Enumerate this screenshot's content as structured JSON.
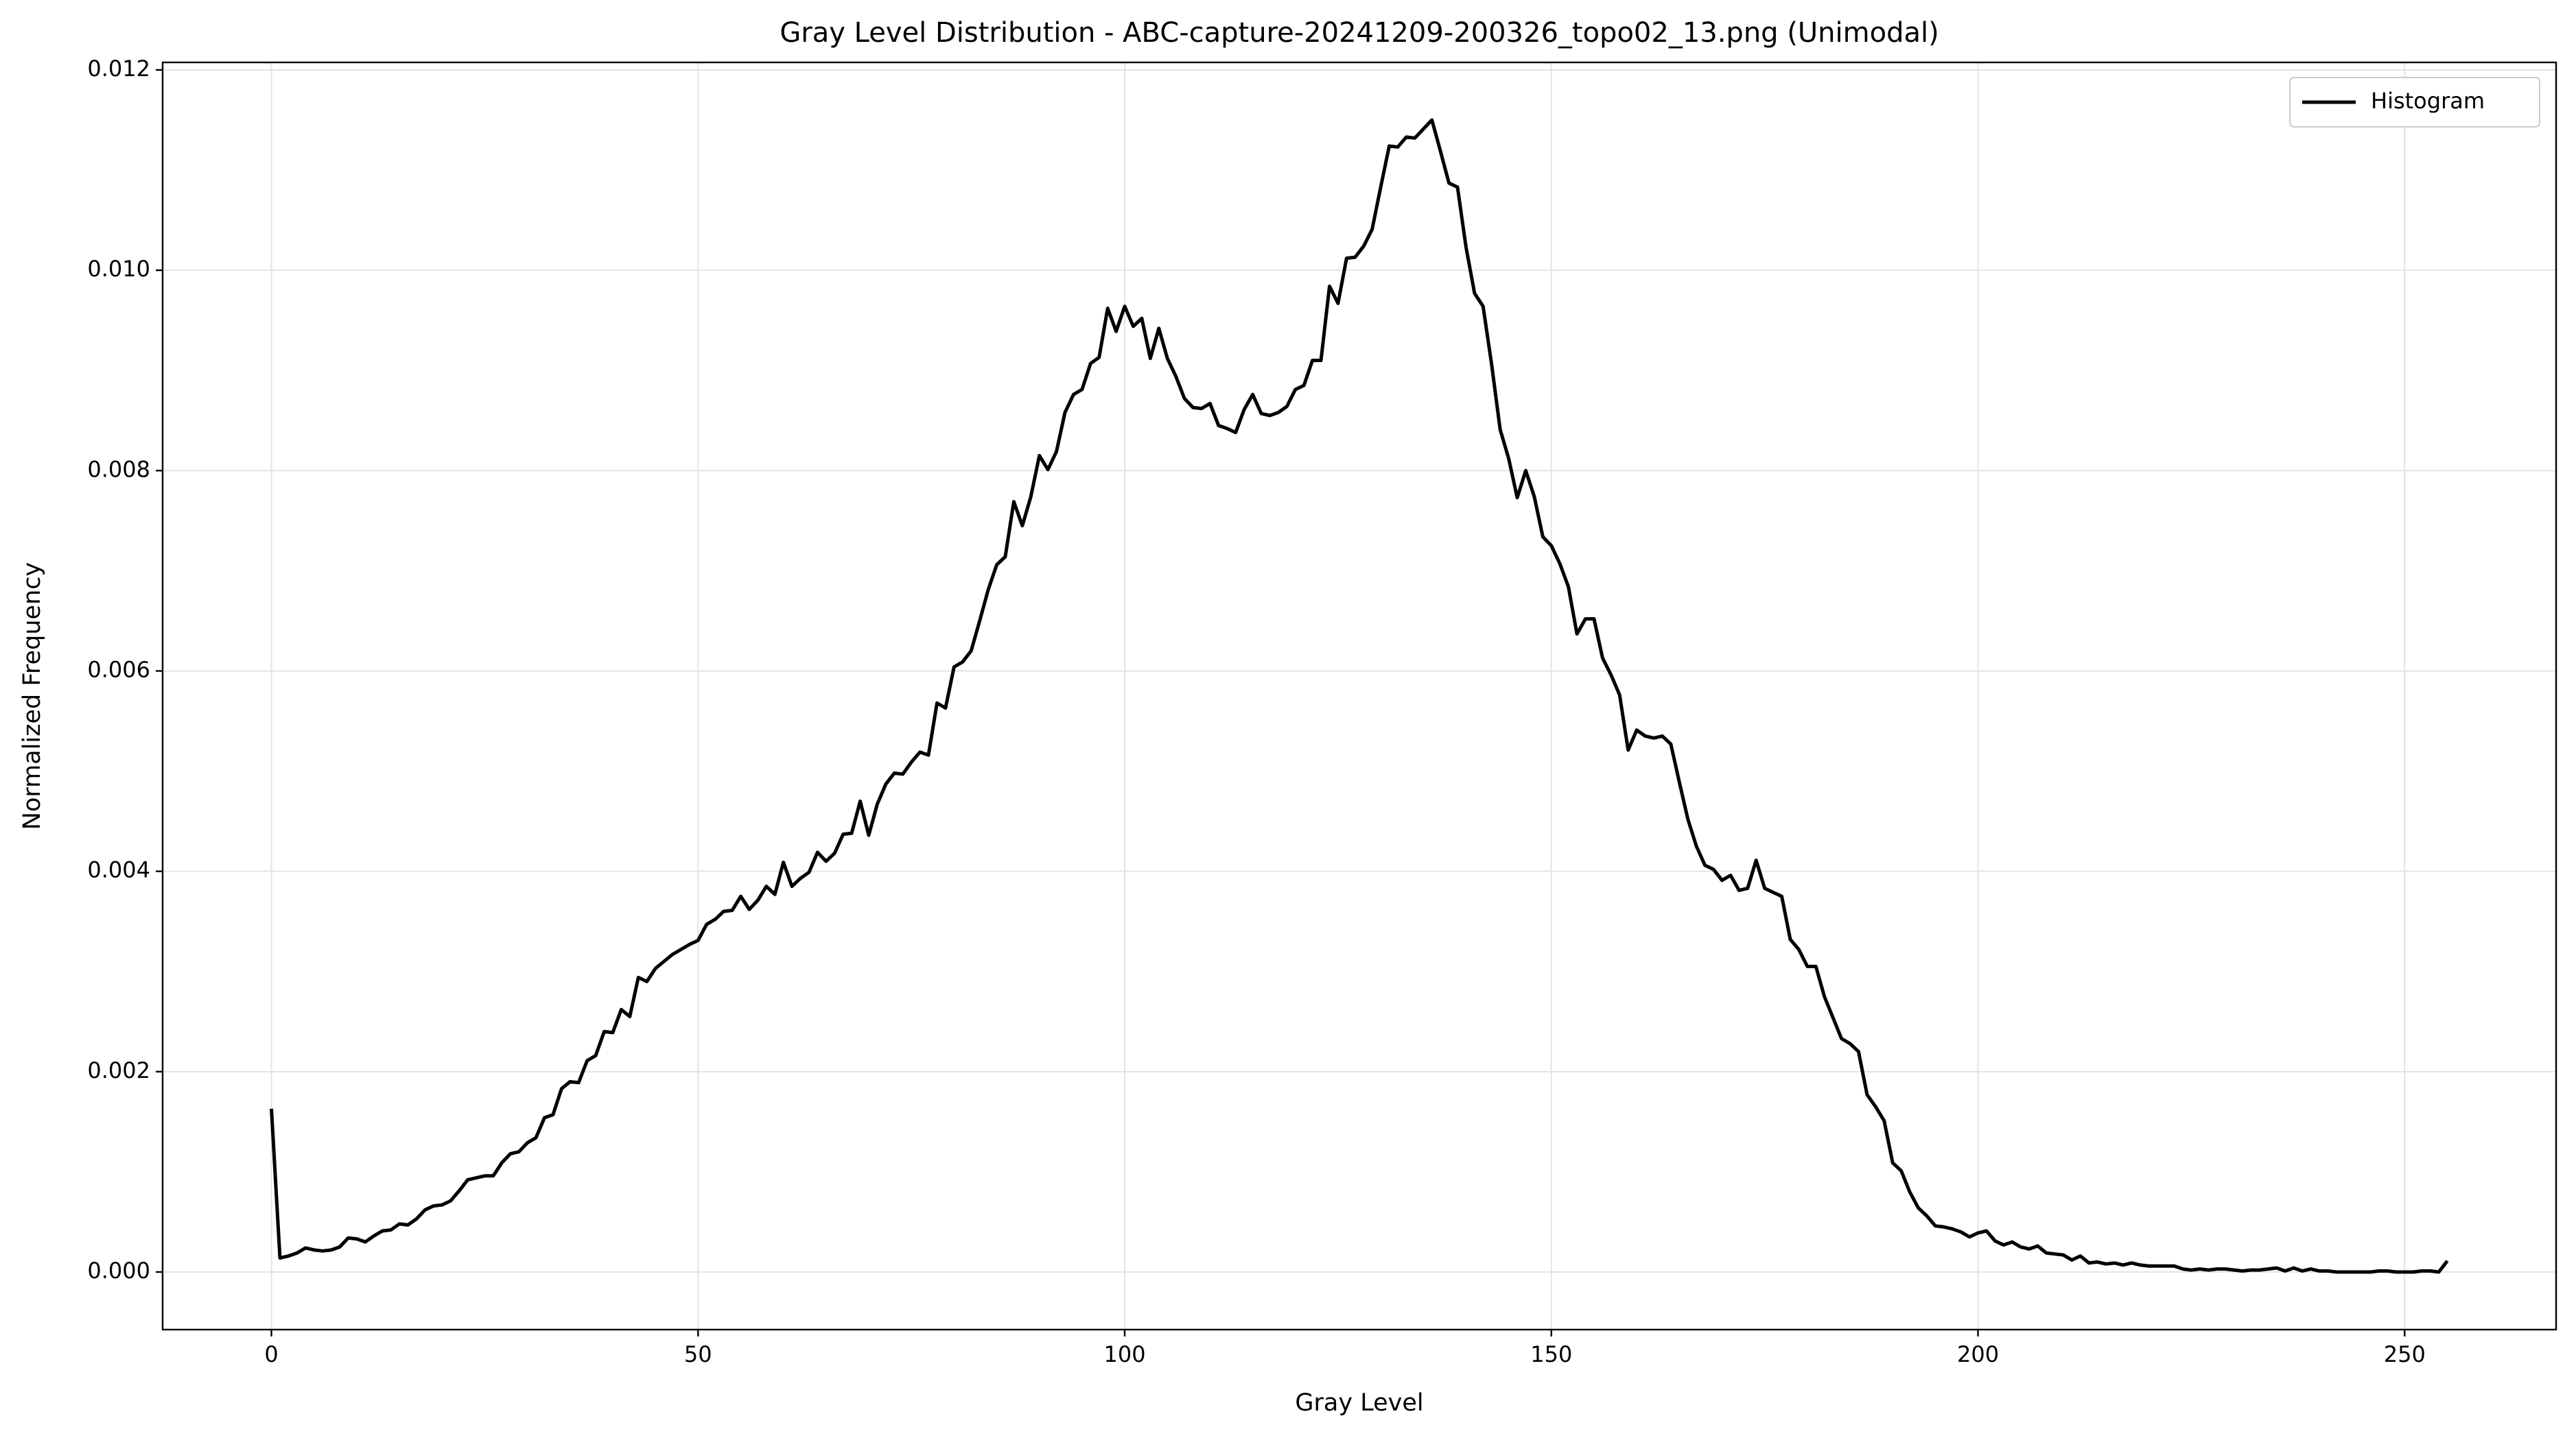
{
  "chart_data": {
    "type": "line",
    "title": "Gray Level Distribution - ABC-capture-20241209-200326_topo02_13.png (Unimodal)",
    "xlabel": "Gray Level",
    "ylabel": "Normalized Frequency",
    "x": [
      0,
      1,
      2,
      3,
      4,
      5,
      6,
      7,
      8,
      9,
      10,
      11,
      12,
      13,
      14,
      15,
      16,
      17,
      18,
      19,
      20,
      21,
      22,
      23,
      24,
      25,
      26,
      27,
      28,
      29,
      30,
      31,
      32,
      33,
      34,
      35,
      36,
      37,
      38,
      39,
      40,
      41,
      42,
      43,
      44,
      45,
      46,
      47,
      48,
      49,
      50,
      51,
      52,
      53,
      54,
      55,
      56,
      57,
      58,
      59,
      60,
      61,
      62,
      63,
      64,
      65,
      66,
      67,
      68,
      69,
      70,
      71,
      72,
      73,
      74,
      75,
      76,
      77,
      78,
      79,
      80,
      81,
      82,
      83,
      84,
      85,
      86,
      87,
      88,
      89,
      90,
      91,
      92,
      93,
      94,
      95,
      96,
      97,
      98,
      99,
      100,
      101,
      102,
      103,
      104,
      105,
      106,
      107,
      108,
      109,
      110,
      111,
      112,
      113,
      114,
      115,
      116,
      117,
      118,
      119,
      120,
      121,
      122,
      123,
      124,
      125,
      126,
      127,
      128,
      129,
      130,
      131,
      132,
      133,
      134,
      135,
      136,
      137,
      138,
      139,
      140,
      141,
      142,
      143,
      144,
      145,
      146,
      147,
      148,
      149,
      150,
      151,
      152,
      153,
      154,
      155,
      156,
      157,
      158,
      159,
      160,
      161,
      162,
      163,
      164,
      165,
      166,
      167,
      168,
      169,
      170,
      171,
      172,
      173,
      174,
      175,
      176,
      177,
      178,
      179,
      180,
      181,
      182,
      183,
      184,
      185,
      186,
      187,
      188,
      189,
      190,
      191,
      192,
      193,
      194,
      195,
      196,
      197,
      198,
      199,
      200,
      201,
      202,
      203,
      204,
      205,
      206,
      207,
      208,
      209,
      210,
      211,
      212,
      213,
      214,
      215,
      216,
      217,
      218,
      219,
      220,
      221,
      222,
      223,
      224,
      225,
      226,
      227,
      228,
      229,
      230,
      231,
      232,
      233,
      234,
      235,
      236,
      237,
      238,
      239,
      240,
      241,
      242,
      243,
      244,
      245,
      246,
      247,
      248,
      249,
      250,
      251,
      252,
      253,
      254,
      255
    ],
    "series": [
      {
        "name": "Histogram",
        "color": "#000000",
        "values": [
          0.00163,
          0.00014,
          0.00016,
          0.00019,
          0.00024,
          0.00022,
          0.00021,
          0.00022,
          0.00025,
          0.00034,
          0.00033,
          0.0003,
          0.00036,
          0.00041,
          0.00042,
          0.00048,
          0.00047,
          0.00053,
          0.00062,
          0.00066,
          0.00067,
          0.00071,
          0.00081,
          0.00092,
          0.00094,
          0.00096,
          0.00096,
          0.00109,
          0.00118,
          0.0012,
          0.00129,
          0.00134,
          0.00154,
          0.00157,
          0.00183,
          0.0019,
          0.00189,
          0.00211,
          0.00216,
          0.0024,
          0.00239,
          0.00262,
          0.00255,
          0.00294,
          0.0029,
          0.00303,
          0.0031,
          0.00317,
          0.00322,
          0.00327,
          0.00331,
          0.00347,
          0.00352,
          0.0036,
          0.00361,
          0.00375,
          0.00362,
          0.00371,
          0.00385,
          0.00377,
          0.00409,
          0.00385,
          0.00393,
          0.00399,
          0.00419,
          0.0041,
          0.00418,
          0.00437,
          0.00438,
          0.0047,
          0.00436,
          0.00467,
          0.00487,
          0.00498,
          0.00497,
          0.00509,
          0.00519,
          0.00516,
          0.00568,
          0.00563,
          0.00604,
          0.00609,
          0.0062,
          0.0065,
          0.00681,
          0.00706,
          0.00714,
          0.00769,
          0.00745,
          0.00774,
          0.00815,
          0.00801,
          0.00819,
          0.00858,
          0.00876,
          0.00881,
          0.00907,
          0.00913,
          0.00962,
          0.00939,
          0.00964,
          0.00944,
          0.00952,
          0.00912,
          0.00942,
          0.00912,
          0.00894,
          0.00872,
          0.00863,
          0.00862,
          0.00867,
          0.00845,
          0.00842,
          0.00838,
          0.00861,
          0.00876,
          0.00857,
          0.00855,
          0.00858,
          0.00864,
          0.00881,
          0.00885,
          0.0091,
          0.0091,
          0.00984,
          0.00967,
          0.01012,
          0.01013,
          0.01024,
          0.01041,
          0.01083,
          0.01124,
          0.01123,
          0.01133,
          0.01132,
          0.01141,
          0.0115,
          0.01119,
          0.01087,
          0.01083,
          0.01023,
          0.00977,
          0.00964,
          0.00906,
          0.00841,
          0.00812,
          0.00773,
          0.008,
          0.00774,
          0.00734,
          0.00725,
          0.00707,
          0.00684,
          0.00637,
          0.00652,
          0.00652,
          0.00613,
          0.00596,
          0.00576,
          0.00521,
          0.00541,
          0.00535,
          0.00533,
          0.00535,
          0.00527,
          0.00489,
          0.00452,
          0.00425,
          0.00406,
          0.00402,
          0.00391,
          0.00396,
          0.00381,
          0.00383,
          0.00411,
          0.00383,
          0.00379,
          0.00375,
          0.00332,
          0.00322,
          0.00305,
          0.00305,
          0.00275,
          0.00254,
          0.00233,
          0.00228,
          0.0022,
          0.00177,
          0.00165,
          0.00151,
          0.00109,
          0.00101,
          0.0008,
          0.00064,
          0.00056,
          0.00046,
          0.00045,
          0.00043,
          0.0004,
          0.00035,
          0.00039,
          0.00041,
          0.00031,
          0.00027,
          0.0003,
          0.00025,
          0.00023,
          0.00026,
          0.00019,
          0.00018,
          0.00017,
          0.00012,
          0.00016,
          9e-05,
          0.0001,
          8e-05,
          9e-05,
          7e-05,
          9e-05,
          7e-05,
          6e-05,
          6e-05,
          6e-05,
          6e-05,
          3e-05,
          2e-05,
          3e-05,
          2e-05,
          3e-05,
          3e-05,
          2e-05,
          1e-05,
          2e-05,
          2e-05,
          3e-05,
          4e-05,
          1e-05,
          4e-05,
          1e-05,
          3e-05,
          1e-05,
          1e-05,
          0,
          0,
          0,
          0,
          0,
          1e-05,
          1e-05,
          0,
          0,
          0,
          1e-05,
          1e-05,
          0,
          0.00011
        ]
      }
    ],
    "xlim": [
      -12.75,
      267.75
    ],
    "ylim": [
      -0.000575,
      0.012075
    ],
    "xticks": [
      0,
      50,
      100,
      150,
      200,
      250
    ],
    "yticks": [
      {
        "value": 0,
        "label": "0.000"
      },
      {
        "value": 0.002,
        "label": "0.002"
      },
      {
        "value": 0.004,
        "label": "0.004"
      },
      {
        "value": 0.006,
        "label": "0.006"
      },
      {
        "value": 0.008,
        "label": "0.008"
      },
      {
        "value": 0.01,
        "label": "0.010"
      },
      {
        "value": 0.012,
        "label": "0.012"
      }
    ],
    "grid": true,
    "legend": "upper right"
  }
}
